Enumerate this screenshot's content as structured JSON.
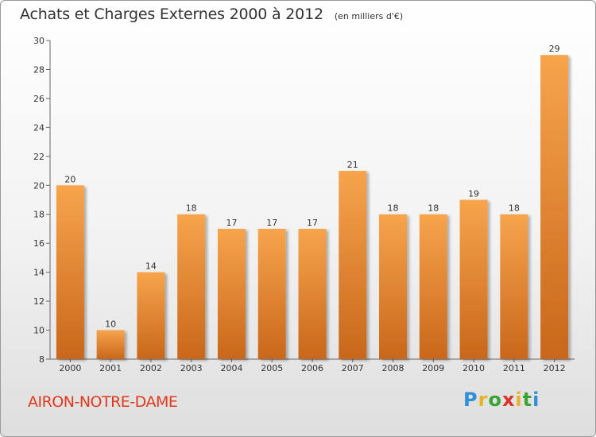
{
  "header": {
    "title": "Achats et Charges Externes 2000 à 2012",
    "subtitle": "(en milliers d'€)"
  },
  "footer": {
    "town": "AIRON-NOTRE-DAME",
    "brand": "Proxiti",
    "brand_letters": [
      "P",
      "r",
      "o",
      "x",
      "i",
      "t",
      "i"
    ],
    "brand_colors": [
      "#2f8fd8",
      "#e8b32a",
      "#3aa335",
      "#d8352a",
      "#e8b32a",
      "#3aa335",
      "#2f8fd8"
    ]
  },
  "chart_data": {
    "type": "bar",
    "title": "Achats et Charges Externes 2000 à 2012",
    "subtitle": "(en milliers d'€)",
    "categories": [
      "2000",
      "2001",
      "2002",
      "2003",
      "2004",
      "2005",
      "2006",
      "2007",
      "2008",
      "2009",
      "2010",
      "2011",
      "2012"
    ],
    "values": [
      20,
      10,
      14,
      18,
      17,
      17,
      17,
      21,
      18,
      18,
      19,
      18,
      29
    ],
    "ylim": [
      8,
      30
    ],
    "yticks": [
      8,
      10,
      12,
      14,
      16,
      18,
      20,
      22,
      24,
      26,
      28,
      30
    ],
    "grid": false,
    "legend": "none",
    "bar_color_top": "#f7a44c",
    "bar_color_bottom": "#c8671a"
  }
}
